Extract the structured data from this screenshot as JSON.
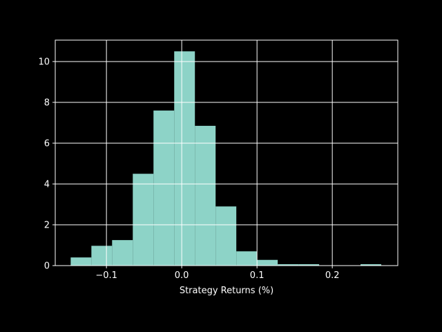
{
  "chart_data": {
    "type": "bar",
    "title": "",
    "xlabel": "Strategy Returns (%)",
    "ylabel": "",
    "xlim": [
      -0.168,
      0.287
    ],
    "ylim": [
      0,
      11.05
    ],
    "xticks": [
      -0.1,
      0.0,
      0.1,
      0.2
    ],
    "xtick_labels": [
      "−0.1",
      "0.0",
      "0.1",
      "0.2"
    ],
    "yticks": [
      0,
      2,
      4,
      6,
      8,
      10
    ],
    "ytick_labels": [
      "0",
      "2",
      "4",
      "6",
      "8",
      "10"
    ],
    "grid": true,
    "bins": [
      {
        "x0": -0.1475,
        "x1": -0.12,
        "value": 0.4
      },
      {
        "x0": -0.12,
        "x1": -0.0925,
        "value": 0.97
      },
      {
        "x0": -0.0925,
        "x1": -0.065,
        "value": 1.25
      },
      {
        "x0": -0.065,
        "x1": -0.0375,
        "value": 4.5
      },
      {
        "x0": -0.0375,
        "x1": -0.01,
        "value": 7.6
      },
      {
        "x0": -0.01,
        "x1": 0.0175,
        "value": 10.5
      },
      {
        "x0": 0.0175,
        "x1": 0.045,
        "value": 6.85
      },
      {
        "x0": 0.045,
        "x1": 0.0725,
        "value": 2.9
      },
      {
        "x0": 0.0725,
        "x1": 0.1,
        "value": 0.7
      },
      {
        "x0": 0.1,
        "x1": 0.1275,
        "value": 0.28
      },
      {
        "x0": 0.1275,
        "x1": 0.155,
        "value": 0.07
      },
      {
        "x0": 0.155,
        "x1": 0.1825,
        "value": 0.07
      },
      {
        "x0": 0.1825,
        "x1": 0.21,
        "value": 0.0
      },
      {
        "x0": 0.21,
        "x1": 0.2375,
        "value": 0.0
      },
      {
        "x0": 0.2375,
        "x1": 0.265,
        "value": 0.07
      }
    ]
  },
  "colors": {
    "background": "#000000",
    "bar": "#8dd3c7",
    "grid": "#ffffff",
    "axes": "#ffffff",
    "text": "#ffffff"
  }
}
